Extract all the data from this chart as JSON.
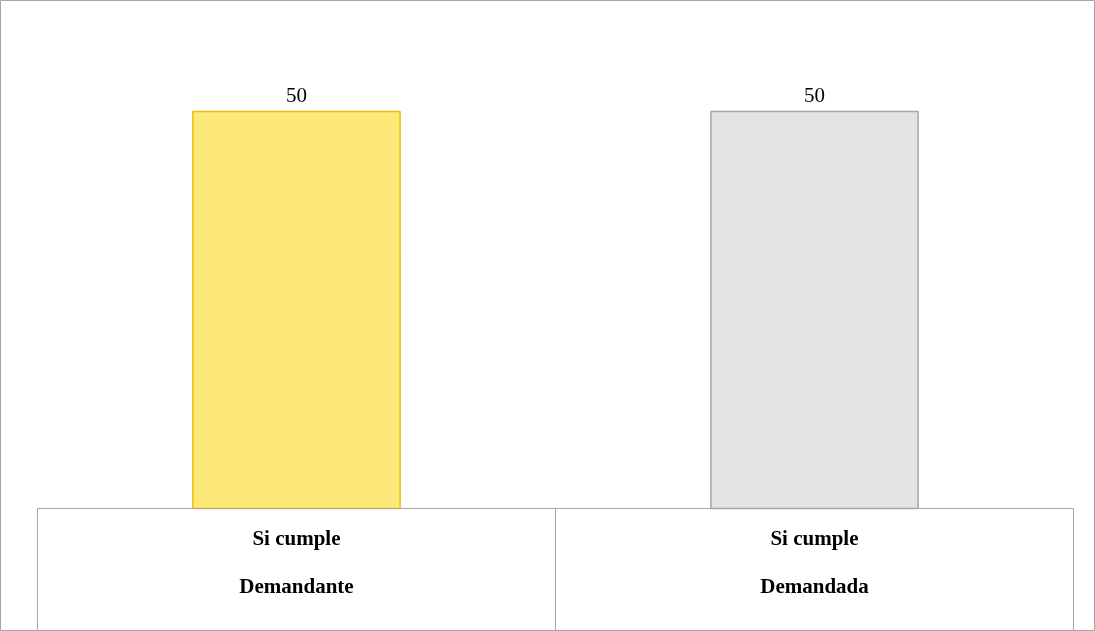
{
  "chart_data": {
    "type": "bar",
    "data_labels": true,
    "categories": [
      "Si cumple\nDemandante",
      "Si cumple\nDemandada"
    ],
    "values": [
      50,
      50
    ],
    "colors": [
      "#fde97a",
      "#e4e4e4"
    ]
  }
}
